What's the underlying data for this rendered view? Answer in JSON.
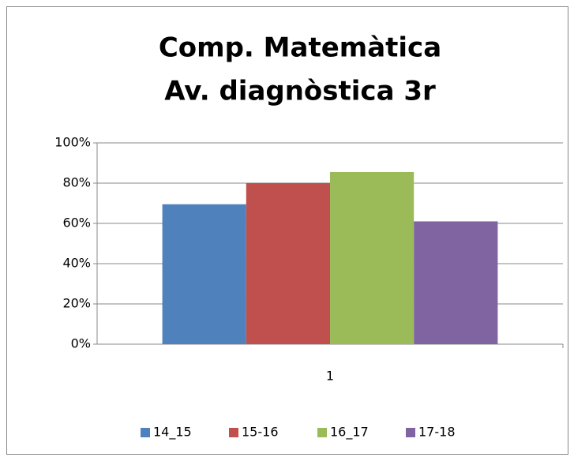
{
  "chart_data": {
    "type": "bar",
    "title": [
      "Comp. Matemàtica",
      "Av. diagnòstica 3r"
    ],
    "categories": [
      "1"
    ],
    "series": [
      {
        "name": "14_15",
        "color": "#4f81bd",
        "values": [
          69.5
        ]
      },
      {
        "name": "15-16",
        "color": "#c0504d",
        "values": [
          80
        ]
      },
      {
        "name": "16_17",
        "color": "#9bbb59",
        "values": [
          85.5
        ]
      },
      {
        "name": "17-18",
        "color": "#8064a2",
        "values": [
          61
        ]
      }
    ],
    "ylim": [
      0,
      100
    ],
    "yticks": [
      {
        "value": 0,
        "label": "0%"
      },
      {
        "value": 20,
        "label": "20%"
      },
      {
        "value": 40,
        "label": "40%"
      },
      {
        "value": 60,
        "label": "60%"
      },
      {
        "value": 80,
        "label": "80%"
      },
      {
        "value": 100,
        "label": "100%"
      }
    ],
    "grid": true,
    "legend": "bottom"
  }
}
